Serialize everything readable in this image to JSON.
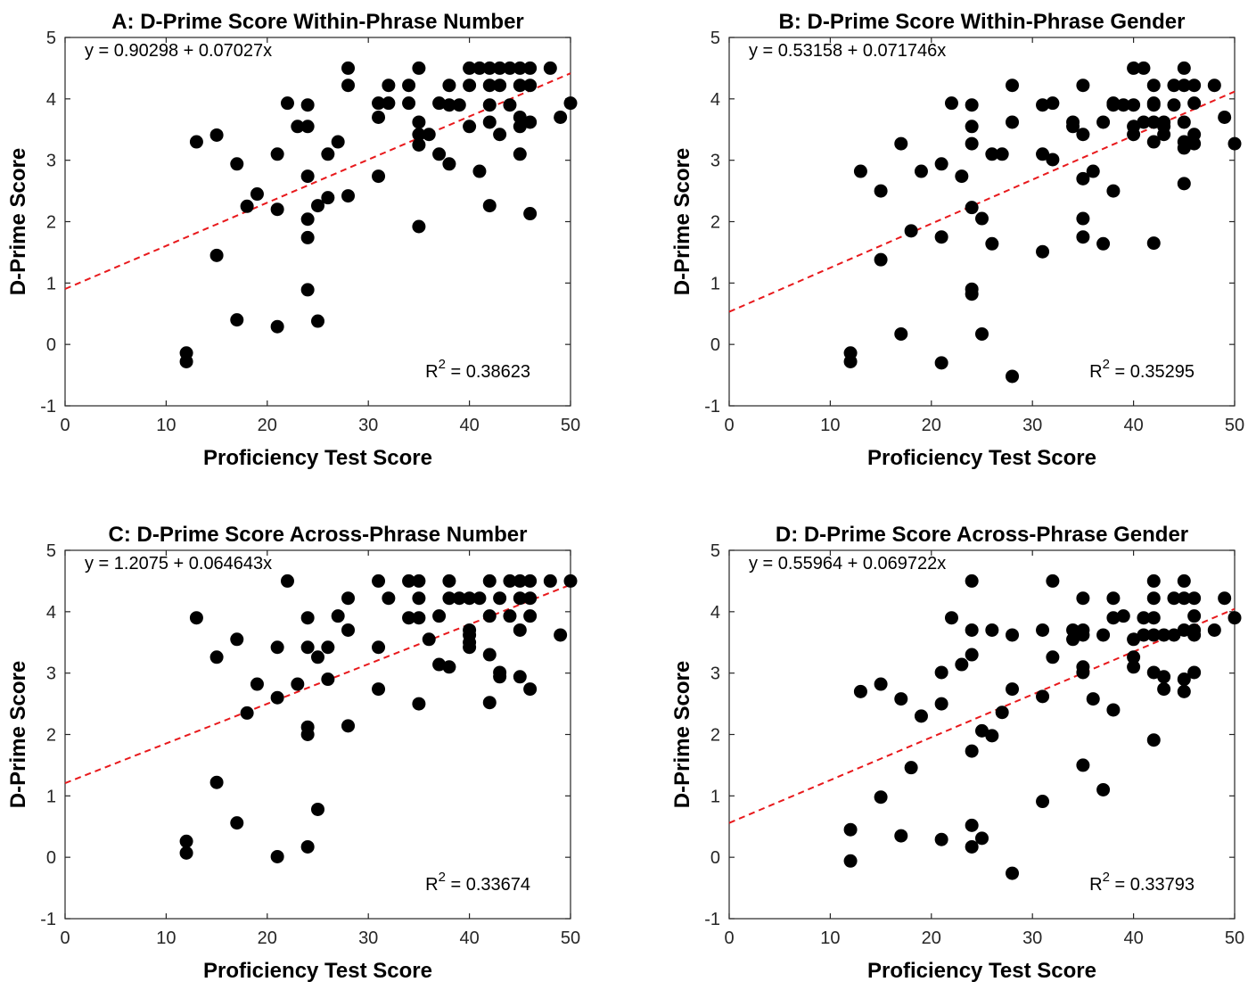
{
  "chart_data": [
    {
      "type": "scatter",
      "title": "A: D-Prime Score Within-Phrase Number",
      "xlabel": "Proficiency Test Score",
      "ylabel": "D-Prime Score",
      "xlim": [
        0,
        50
      ],
      "ylim": [
        -1,
        5
      ],
      "xticks": [
        "0",
        "10",
        "20",
        "30",
        "40",
        "50"
      ],
      "yticks": [
        "-1",
        "0",
        "1",
        "2",
        "3",
        "4",
        "5"
      ],
      "equation": "y = 0.90298 + 0.07027x",
      "r2_prefix": "R",
      "r2_exp": "2",
      "r2_value": " = 0.38623",
      "fit": {
        "intercept": 0.90298,
        "slope": 0.07027,
        "color": "#e8191c",
        "style": "dashed"
      },
      "point_color": "#000000",
      "points": [
        [
          12,
          -0.14
        ],
        [
          12,
          -0.28
        ],
        [
          13,
          3.3
        ],
        [
          15,
          3.41
        ],
        [
          15,
          1.45
        ],
        [
          17,
          2.94
        ],
        [
          17,
          0.4
        ],
        [
          18,
          2.25
        ],
        [
          19,
          2.45
        ],
        [
          21,
          3.1
        ],
        [
          21,
          2.2
        ],
        [
          21,
          0.29
        ],
        [
          22,
          3.93
        ],
        [
          23,
          3.55
        ],
        [
          24,
          3.9
        ],
        [
          24,
          3.55
        ],
        [
          24,
          2.74
        ],
        [
          24,
          2.04
        ],
        [
          24,
          1.74
        ],
        [
          24,
          0.89
        ],
        [
          25,
          2.26
        ],
        [
          25,
          0.38
        ],
        [
          26,
          3.1
        ],
        [
          26,
          2.39
        ],
        [
          27,
          3.3
        ],
        [
          28,
          4.5
        ],
        [
          28,
          4.22
        ],
        [
          28,
          2.42
        ],
        [
          31,
          3.93
        ],
        [
          31,
          3.7
        ],
        [
          31,
          2.74
        ],
        [
          32,
          4.22
        ],
        [
          32,
          3.93
        ],
        [
          34,
          3.93
        ],
        [
          34,
          4.22
        ],
        [
          35,
          4.5
        ],
        [
          35,
          3.62
        ],
        [
          35,
          3.42
        ],
        [
          35,
          3.25
        ],
        [
          35,
          1.92
        ],
        [
          36,
          3.42
        ],
        [
          37,
          3.93
        ],
        [
          37,
          3.1
        ],
        [
          38,
          4.22
        ],
        [
          38,
          3.9
        ],
        [
          38,
          2.94
        ],
        [
          39,
          3.9
        ],
        [
          40,
          4.5
        ],
        [
          40,
          4.22
        ],
        [
          40,
          3.55
        ],
        [
          41,
          4.5
        ],
        [
          41,
          2.82
        ],
        [
          42,
          4.5
        ],
        [
          42,
          4.22
        ],
        [
          42,
          3.9
        ],
        [
          42,
          3.62
        ],
        [
          42,
          2.26
        ],
        [
          43,
          4.5
        ],
        [
          43,
          4.22
        ],
        [
          43,
          3.42
        ],
        [
          44,
          4.5
        ],
        [
          44,
          3.9
        ],
        [
          45,
          4.5
        ],
        [
          45,
          4.22
        ],
        [
          45,
          3.7
        ],
        [
          45,
          3.55
        ],
        [
          45,
          3.1
        ],
        [
          46,
          4.5
        ],
        [
          46,
          4.22
        ],
        [
          46,
          3.62
        ],
        [
          46,
          2.13
        ],
        [
          48,
          4.5
        ],
        [
          49,
          3.7
        ],
        [
          50,
          3.93
        ]
      ]
    },
    {
      "type": "scatter",
      "title": "B: D-Prime Score Within-Phrase Gender",
      "xlabel": "Proficiency Test Score",
      "ylabel": "D-Prime Score",
      "xlim": [
        0,
        50
      ],
      "ylim": [
        -1,
        5
      ],
      "xticks": [
        "0",
        "10",
        "20",
        "30",
        "40",
        "50"
      ],
      "yticks": [
        "-1",
        "0",
        "1",
        "2",
        "3",
        "4",
        "5"
      ],
      "equation": "y = 0.53158 + 0.071746x",
      "r2_prefix": "R",
      "r2_exp": "2",
      "r2_value": " = 0.35295",
      "fit": {
        "intercept": 0.53158,
        "slope": 0.071746,
        "color": "#e8191c",
        "style": "dashed"
      },
      "point_color": "#000000",
      "points": [
        [
          12,
          -0.14
        ],
        [
          12,
          -0.28
        ],
        [
          13,
          2.82
        ],
        [
          15,
          2.5
        ],
        [
          15,
          1.38
        ],
        [
          17,
          3.27
        ],
        [
          17,
          0.17
        ],
        [
          18,
          1.85
        ],
        [
          19,
          2.82
        ],
        [
          21,
          2.94
        ],
        [
          21,
          1.75
        ],
        [
          21,
          -0.3
        ],
        [
          22,
          3.93
        ],
        [
          23,
          2.74
        ],
        [
          24,
          3.9
        ],
        [
          24,
          3.55
        ],
        [
          24,
          3.27
        ],
        [
          24,
          2.23
        ],
        [
          24,
          0.9
        ],
        [
          24,
          0.82
        ],
        [
          25,
          2.05
        ],
        [
          25,
          0.17
        ],
        [
          26,
          3.1
        ],
        [
          26,
          1.64
        ],
        [
          27,
          3.1
        ],
        [
          28,
          4.22
        ],
        [
          28,
          3.62
        ],
        [
          28,
          -0.52
        ],
        [
          31,
          3.9
        ],
        [
          31,
          3.1
        ],
        [
          31,
          1.51
        ],
        [
          32,
          3.93
        ],
        [
          32,
          3.01
        ],
        [
          34,
          3.62
        ],
        [
          34,
          3.55
        ],
        [
          35,
          4.22
        ],
        [
          35,
          3.42
        ],
        [
          35,
          2.7
        ],
        [
          35,
          2.05
        ],
        [
          35,
          1.75
        ],
        [
          36,
          2.82
        ],
        [
          37,
          3.62
        ],
        [
          37,
          1.64
        ],
        [
          38,
          3.93
        ],
        [
          38,
          3.9
        ],
        [
          38,
          2.5
        ],
        [
          39,
          3.9
        ],
        [
          40,
          4.5
        ],
        [
          40,
          3.9
        ],
        [
          40,
          3.55
        ],
        [
          40,
          3.42
        ],
        [
          41,
          4.5
        ],
        [
          41,
          3.62
        ],
        [
          42,
          4.22
        ],
        [
          42,
          3.93
        ],
        [
          42,
          3.9
        ],
        [
          42,
          3.62
        ],
        [
          42,
          3.3
        ],
        [
          42,
          1.65
        ],
        [
          43,
          3.62
        ],
        [
          43,
          3.55
        ],
        [
          43,
          3.42
        ],
        [
          44,
          3.9
        ],
        [
          44,
          4.22
        ],
        [
          45,
          4.5
        ],
        [
          45,
          4.22
        ],
        [
          45,
          3.62
        ],
        [
          45,
          3.3
        ],
        [
          45,
          3.2
        ],
        [
          45,
          2.62
        ],
        [
          46,
          4.22
        ],
        [
          46,
          3.93
        ],
        [
          46,
          3.42
        ],
        [
          46,
          3.27
        ],
        [
          48,
          4.22
        ],
        [
          49,
          3.7
        ],
        [
          50,
          3.27
        ]
      ]
    },
    {
      "type": "scatter",
      "title": "C: D-Prime Score Across-Phrase Number",
      "xlabel": "Proficiency Test Score",
      "ylabel": "D-Prime Score",
      "xlim": [
        0,
        50
      ],
      "ylim": [
        -1,
        5
      ],
      "xticks": [
        "0",
        "10",
        "20",
        "30",
        "40",
        "50"
      ],
      "yticks": [
        "-1",
        "0",
        "1",
        "2",
        "3",
        "4",
        "5"
      ],
      "equation": "y = 1.2075 + 0.064643x",
      "r2_prefix": "R",
      "r2_exp": "2",
      "r2_value": " = 0.33674",
      "fit": {
        "intercept": 1.2075,
        "slope": 0.064643,
        "color": "#e8191c",
        "style": "dashed"
      },
      "point_color": "#000000",
      "points": [
        [
          12,
          0.26
        ],
        [
          12,
          0.07
        ],
        [
          13,
          3.9
        ],
        [
          15,
          3.26
        ],
        [
          15,
          1.22
        ],
        [
          17,
          3.55
        ],
        [
          17,
          0.56
        ],
        [
          18,
          2.35
        ],
        [
          19,
          2.82
        ],
        [
          21,
          3.42
        ],
        [
          21,
          2.6
        ],
        [
          21,
          0.01
        ],
        [
          22,
          4.5
        ],
        [
          23,
          2.82
        ],
        [
          24,
          3.9
        ],
        [
          24,
          3.42
        ],
        [
          24,
          2.12
        ],
        [
          24,
          2.0
        ],
        [
          24,
          0.17
        ],
        [
          25,
          3.26
        ],
        [
          25,
          0.78
        ],
        [
          26,
          3.42
        ],
        [
          26,
          2.9
        ],
        [
          27,
          3.93
        ],
        [
          28,
          4.22
        ],
        [
          28,
          3.7
        ],
        [
          28,
          2.14
        ],
        [
          31,
          4.5
        ],
        [
          31,
          3.42
        ],
        [
          31,
          2.74
        ],
        [
          32,
          4.22
        ],
        [
          34,
          4.5
        ],
        [
          34,
          3.9
        ],
        [
          35,
          4.5
        ],
        [
          35,
          4.22
        ],
        [
          35,
          3.9
        ],
        [
          35,
          2.5
        ],
        [
          36,
          3.55
        ],
        [
          37,
          3.93
        ],
        [
          37,
          3.14
        ],
        [
          38,
          4.5
        ],
        [
          38,
          4.22
        ],
        [
          38,
          3.1
        ],
        [
          39,
          4.22
        ],
        [
          40,
          4.22
        ],
        [
          40,
          3.7
        ],
        [
          40,
          3.62
        ],
        [
          40,
          3.5
        ],
        [
          40,
          3.42
        ],
        [
          41,
          4.22
        ],
        [
          42,
          4.5
        ],
        [
          42,
          3.93
        ],
        [
          42,
          3.3
        ],
        [
          42,
          2.52
        ],
        [
          43,
          4.22
        ],
        [
          43,
          3.01
        ],
        [
          43,
          2.94
        ],
        [
          44,
          4.5
        ],
        [
          44,
          3.93
        ],
        [
          45,
          4.5
        ],
        [
          45,
          4.22
        ],
        [
          45,
          3.7
        ],
        [
          45,
          2.94
        ],
        [
          46,
          4.5
        ],
        [
          46,
          4.22
        ],
        [
          46,
          3.93
        ],
        [
          46,
          2.74
        ],
        [
          48,
          4.5
        ],
        [
          49,
          3.62
        ],
        [
          50,
          4.5
        ]
      ]
    },
    {
      "type": "scatter",
      "title": "D: D-Prime Score Across-Phrase Gender",
      "xlabel": "Proficiency Test Score",
      "ylabel": "D-Prime Score",
      "xlim": [
        0,
        50
      ],
      "ylim": [
        -1,
        5
      ],
      "xticks": [
        "0",
        "10",
        "20",
        "30",
        "40",
        "50"
      ],
      "yticks": [
        "-1",
        "0",
        "1",
        "2",
        "3",
        "4",
        "5"
      ],
      "equation": "y = 0.55964 + 0.069722x",
      "r2_prefix": "R",
      "r2_exp": "2",
      "r2_value": " = 0.33793",
      "fit": {
        "intercept": 0.55964,
        "slope": 0.069722,
        "color": "#e8191c",
        "style": "dashed"
      },
      "point_color": "#000000",
      "points": [
        [
          12,
          0.45
        ],
        [
          12,
          -0.06
        ],
        [
          13,
          2.7
        ],
        [
          15,
          2.82
        ],
        [
          15,
          0.98
        ],
        [
          17,
          2.58
        ],
        [
          17,
          0.35
        ],
        [
          18,
          1.46
        ],
        [
          19,
          2.3
        ],
        [
          21,
          3.01
        ],
        [
          21,
          2.5
        ],
        [
          21,
          0.29
        ],
        [
          22,
          3.9
        ],
        [
          23,
          3.14
        ],
        [
          24,
          4.5
        ],
        [
          24,
          3.7
        ],
        [
          24,
          3.3
        ],
        [
          24,
          1.73
        ],
        [
          24,
          0.52
        ],
        [
          24,
          0.17
        ],
        [
          25,
          2.06
        ],
        [
          25,
          0.31
        ],
        [
          26,
          3.7
        ],
        [
          26,
          1.98
        ],
        [
          27,
          2.36
        ],
        [
          28,
          3.62
        ],
        [
          28,
          2.74
        ],
        [
          28,
          -0.26
        ],
        [
          31,
          3.7
        ],
        [
          31,
          2.62
        ],
        [
          31,
          0.91
        ],
        [
          32,
          4.5
        ],
        [
          32,
          3.26
        ],
        [
          34,
          3.7
        ],
        [
          34,
          3.55
        ],
        [
          35,
          4.22
        ],
        [
          35,
          3.7
        ],
        [
          35,
          3.62
        ],
        [
          35,
          3.1
        ],
        [
          35,
          3.01
        ],
        [
          35,
          1.5
        ],
        [
          36,
          2.58
        ],
        [
          37,
          3.62
        ],
        [
          37,
          1.1
        ],
        [
          38,
          4.22
        ],
        [
          38,
          3.9
        ],
        [
          38,
          2.4
        ],
        [
          39,
          3.93
        ],
        [
          40,
          3.55
        ],
        [
          40,
          3.26
        ],
        [
          40,
          3.1
        ],
        [
          41,
          3.9
        ],
        [
          41,
          3.62
        ],
        [
          42,
          4.5
        ],
        [
          42,
          4.22
        ],
        [
          42,
          3.9
        ],
        [
          42,
          3.62
        ],
        [
          42,
          3.01
        ],
        [
          42,
          1.91
        ],
        [
          43,
          3.62
        ],
        [
          43,
          2.94
        ],
        [
          43,
          2.74
        ],
        [
          44,
          3.62
        ],
        [
          44,
          4.22
        ],
        [
          45,
          4.5
        ],
        [
          45,
          4.22
        ],
        [
          45,
          3.7
        ],
        [
          45,
          2.9
        ],
        [
          45,
          2.7
        ],
        [
          46,
          4.22
        ],
        [
          46,
          3.93
        ],
        [
          46,
          3.7
        ],
        [
          46,
          3.62
        ],
        [
          46,
          3.01
        ],
        [
          48,
          3.7
        ],
        [
          49,
          4.22
        ],
        [
          50,
          3.9
        ]
      ]
    }
  ]
}
